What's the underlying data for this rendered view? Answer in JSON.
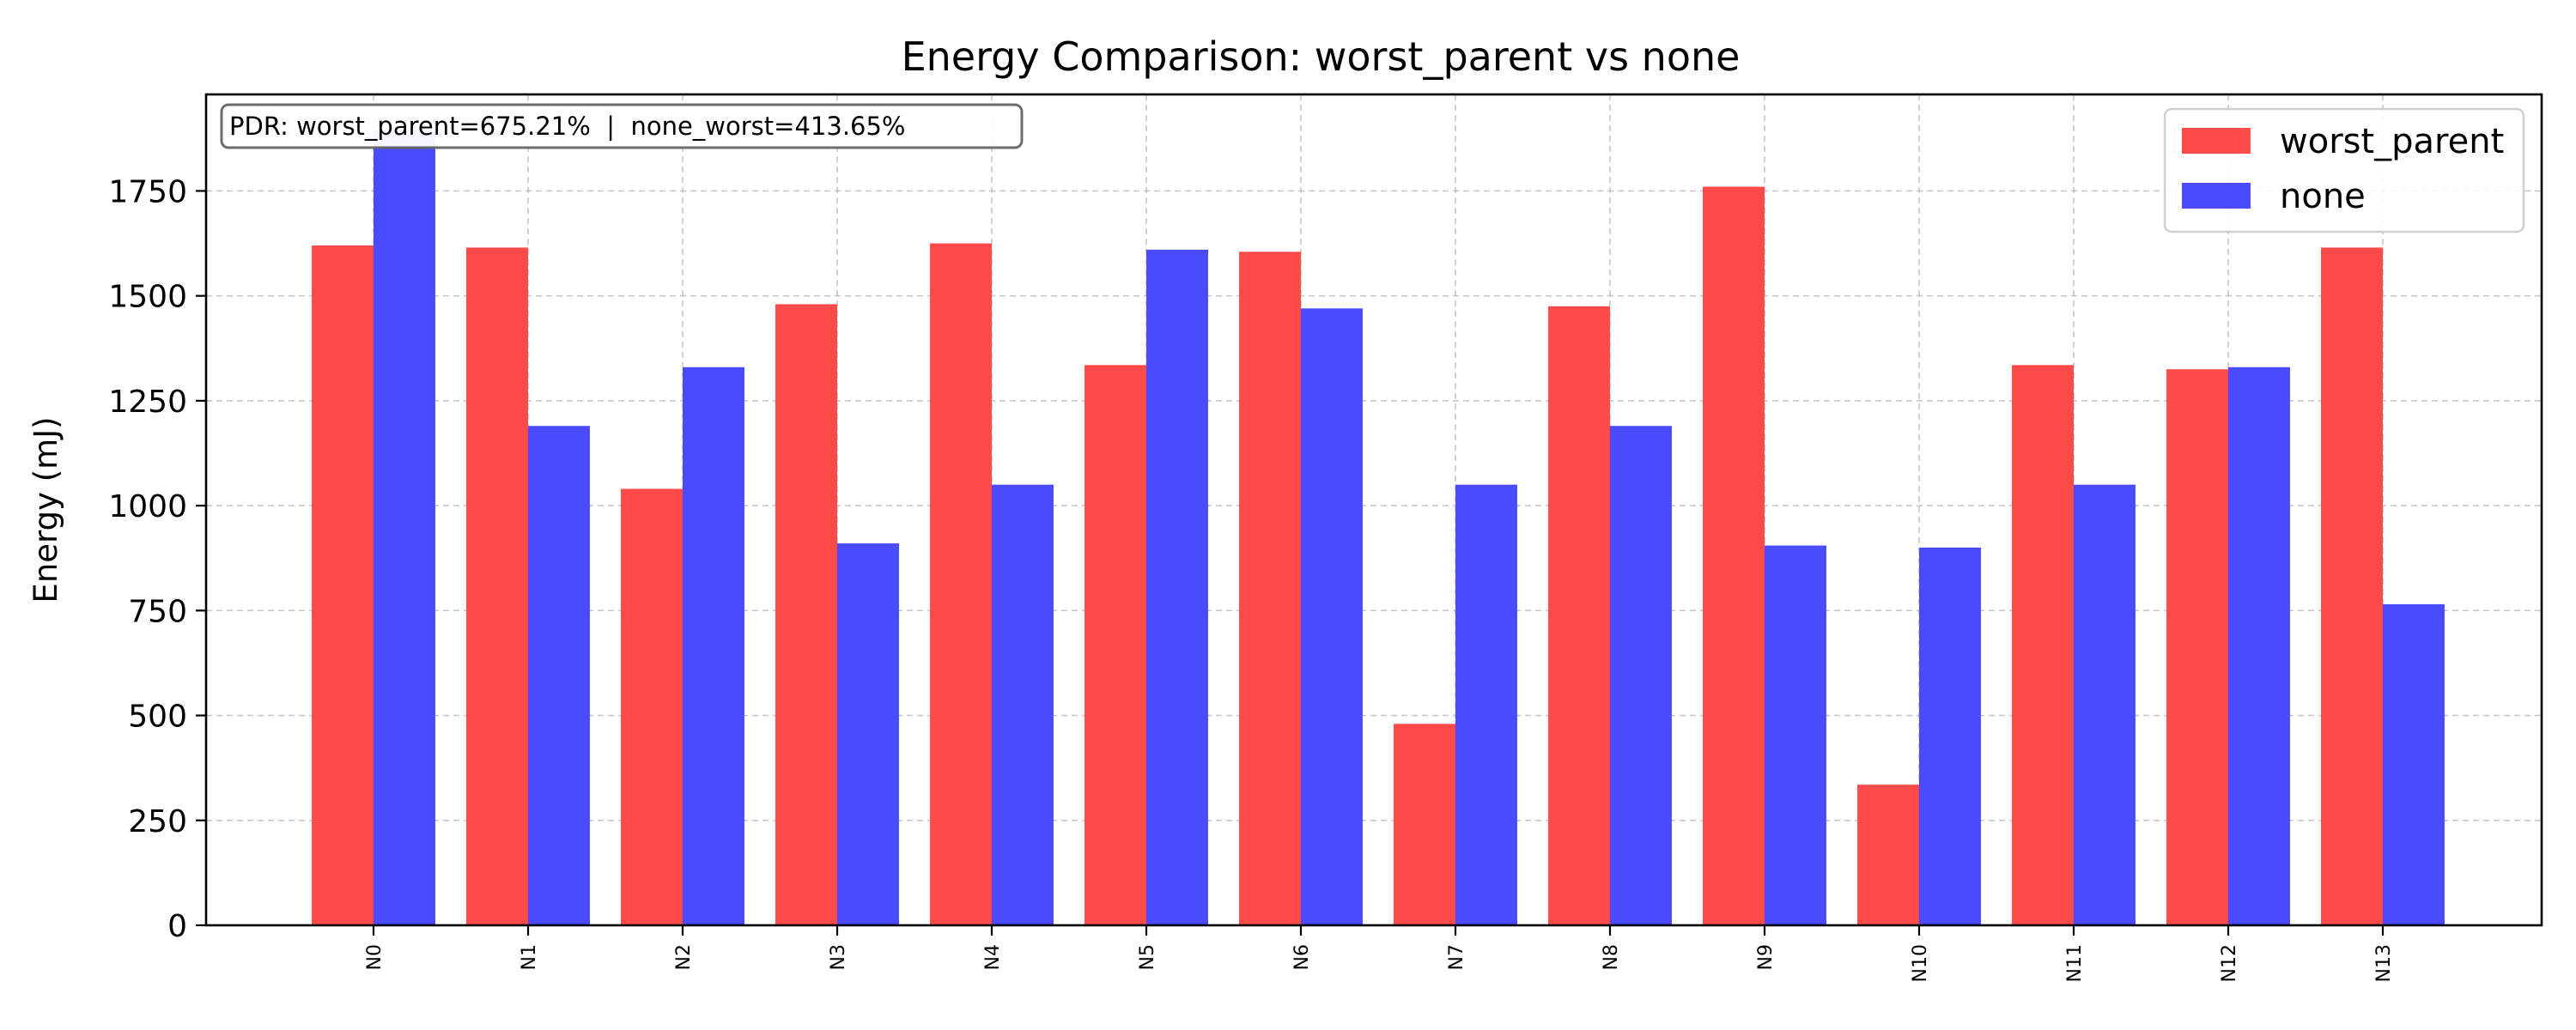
{
  "chart_data": {
    "type": "bar",
    "title": "Energy Comparison: worst_parent vs none",
    "xlabel": "",
    "ylabel": "Energy (mJ)",
    "ylim": [
      0,
      1980
    ],
    "yticks": [
      0,
      250,
      500,
      750,
      1000,
      1250,
      1500,
      1750
    ],
    "ytick_labels": [
      "0",
      "250",
      "500",
      "750",
      "1000",
      "1250",
      "1500",
      "1750"
    ],
    "grid": true,
    "legend_position": "top-right",
    "categories": [
      "N0",
      "N1",
      "N2",
      "N3",
      "N4",
      "N5",
      "N6",
      "N7",
      "N8",
      "N9",
      "N10",
      "N11",
      "N12",
      "N13"
    ],
    "series": [
      {
        "name": "worst_parent",
        "color": "#ff4a4a",
        "values": [
          1620,
          1615,
          1040,
          1480,
          1625,
          1335,
          1605,
          480,
          1475,
          1760,
          335,
          1335,
          1325,
          1615
        ]
      },
      {
        "name": "none",
        "color": "#4a4aff",
        "values": [
          1895,
          1190,
          1330,
          910,
          1050,
          1610,
          1470,
          1050,
          1190,
          905,
          900,
          1050,
          1330,
          765
        ]
      }
    ],
    "annotation": "PDR: worst_parent=675.21%  |  none_worst=413.65%"
  }
}
